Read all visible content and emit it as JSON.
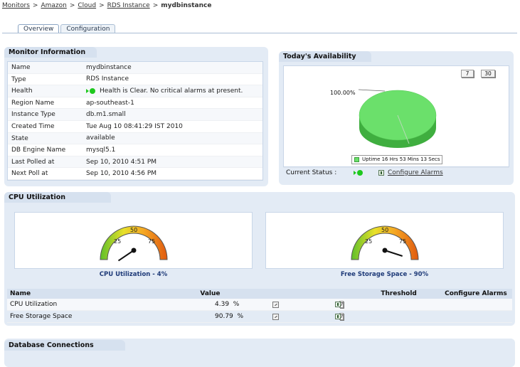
{
  "breadcrumb": {
    "items": [
      "Monitors",
      "Amazon",
      "Cloud",
      "RDS Instance"
    ],
    "separator": ">",
    "current": "mydbinstance"
  },
  "tabs": [
    {
      "label": "Overview",
      "active": true
    },
    {
      "label": "Configuration",
      "active": false
    }
  ],
  "monitor_info": {
    "title": "Monitor Information",
    "rows": [
      {
        "key": "Name",
        "value": "mydbinstance"
      },
      {
        "key": "Type",
        "value": "RDS Instance"
      },
      {
        "key": "Health",
        "value": "Health is Clear. No critical alarms at present."
      },
      {
        "key": "Region Name",
        "value": "ap-southeast-1"
      },
      {
        "key": "Instance Type",
        "value": "db.m1.small"
      },
      {
        "key": "Created Time",
        "value": "Tue Aug 10 08:41:29 IST 2010"
      },
      {
        "key": "State",
        "value": "available"
      },
      {
        "key": "DB Engine Name",
        "value": "mysql5.1"
      },
      {
        "key": "Last Polled at",
        "value": "Sep 10, 2010 4:51 PM"
      },
      {
        "key": "Next Poll at",
        "value": "Sep 10, 2010 4:56 PM"
      }
    ],
    "health_color": "#1ec81e"
  },
  "availability": {
    "title": "Today's Availability",
    "btn_7": "7",
    "btn_30": "30",
    "percent_label": "100.00%",
    "legend": "Uptime 16 Hrs 53 Mins 13 Secs",
    "status_label": "Current Status :",
    "configure_alarms": "Configure Alarms",
    "uptime_color": "#6be06b"
  },
  "cpu": {
    "title": "CPU Utilization",
    "gauges": [
      {
        "caption": "CPU Utilization - 4%",
        "value": 4,
        "ticks": [
          "25",
          "50",
          "75"
        ]
      },
      {
        "caption": "Free Storage Space - 90%",
        "value": 90,
        "ticks": [
          "25",
          "50",
          "75"
        ]
      }
    ],
    "table": {
      "headers": {
        "name": "Name",
        "value": "Value",
        "threshold": "Threshold",
        "alarms": "Configure Alarms"
      },
      "rows": [
        {
          "name": "CPU Utilization",
          "value": "4.39",
          "unit": "%",
          "btn": "7"
        },
        {
          "name": "Free Storage Space",
          "value": "90.79",
          "unit": "%",
          "btn": "7"
        }
      ]
    }
  },
  "db_connections": {
    "title": "Database Connections"
  }
}
